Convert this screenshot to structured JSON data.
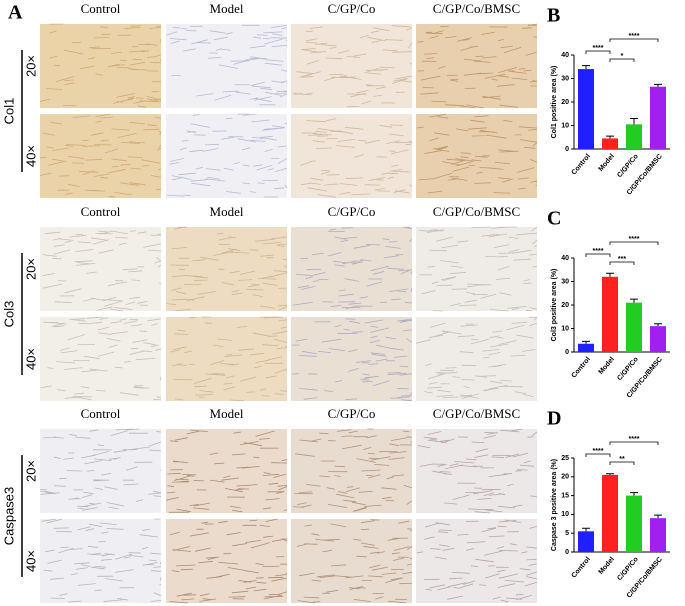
{
  "panel_a": {
    "label": "A",
    "groups": [
      {
        "stain": "Col1",
        "columns": [
          "Control",
          "Model",
          "C/GP/Co",
          "C/GP/Co/BMSC"
        ],
        "magnifications": [
          "20×",
          "40×"
        ]
      },
      {
        "stain": "Col3",
        "columns": [
          "Control",
          "Model",
          "C/GP/Co",
          "C/GP/Co/BMSC"
        ],
        "magnifications": [
          "20×",
          "40×"
        ]
      },
      {
        "stain": "Caspase3",
        "columns": [
          "Control",
          "Model",
          "C/GP/Co",
          "C/GP/Co/BMSC"
        ],
        "magnifications": [
          "20×",
          "40×"
        ]
      }
    ]
  },
  "chart_data": [
    {
      "type": "bar",
      "label": "B",
      "ylabel": "Col1 positive area (%)",
      "categories": [
        "Control",
        "Model",
        "C/GP/Co",
        "C/GP/Co/BMSC"
      ],
      "values": [
        34,
        4.5,
        10.5,
        26.5
      ],
      "errors": [
        1.5,
        1,
        2.5,
        1
      ],
      "colors": [
        "#1f1fff",
        "#ff2020",
        "#22cc22",
        "#a020f0"
      ],
      "ylim": [
        0,
        40
      ],
      "yticks": [
        0,
        10,
        20,
        30,
        40
      ],
      "comparisons": [
        {
          "groups": [
            "Control",
            "Model"
          ],
          "label": "****"
        },
        {
          "groups": [
            "Model",
            "C/GP/Co"
          ],
          "label": "*"
        },
        {
          "groups": [
            "Model",
            "C/GP/Co/BMSC"
          ],
          "label": "****"
        }
      ]
    },
    {
      "type": "bar",
      "label": "C",
      "ylabel": "Col3 positive area (%)",
      "categories": [
        "Control",
        "Model",
        "C/GP/Co",
        "C/GP/Co/BMSC"
      ],
      "values": [
        3.5,
        32,
        21,
        11
      ],
      "errors": [
        1,
        1.5,
        1.5,
        1
      ],
      "colors": [
        "#1f1fff",
        "#ff2020",
        "#22cc22",
        "#a020f0"
      ],
      "ylim": [
        0,
        40
      ],
      "yticks": [
        0,
        10,
        20,
        30,
        40
      ],
      "comparisons": [
        {
          "groups": [
            "Control",
            "Model"
          ],
          "label": "****"
        },
        {
          "groups": [
            "Model",
            "C/GP/Co"
          ],
          "label": "***"
        },
        {
          "groups": [
            "Model",
            "C/GP/Co/BMSC"
          ],
          "label": "****"
        }
      ]
    },
    {
      "type": "bar",
      "label": "D",
      "ylabel": "Caspase 3 positive area (%)",
      "categories": [
        "Control",
        "Model",
        "C/GP/Co",
        "C/GP/Co/BMSC"
      ],
      "values": [
        5.5,
        20.5,
        15,
        9
      ],
      "errors": [
        0.8,
        0.3,
        0.8,
        0.8
      ],
      "colors": [
        "#1f1fff",
        "#ff2020",
        "#22cc22",
        "#a020f0"
      ],
      "ylim": [
        0,
        25
      ],
      "yticks": [
        0,
        5,
        10,
        15,
        20,
        25
      ],
      "comparisons": [
        {
          "groups": [
            "Control",
            "Model"
          ],
          "label": "****"
        },
        {
          "groups": [
            "Model",
            "C/GP/Co"
          ],
          "label": "**"
        },
        {
          "groups": [
            "Model",
            "C/GP/Co/BMSC"
          ],
          "label": "****"
        }
      ]
    }
  ]
}
